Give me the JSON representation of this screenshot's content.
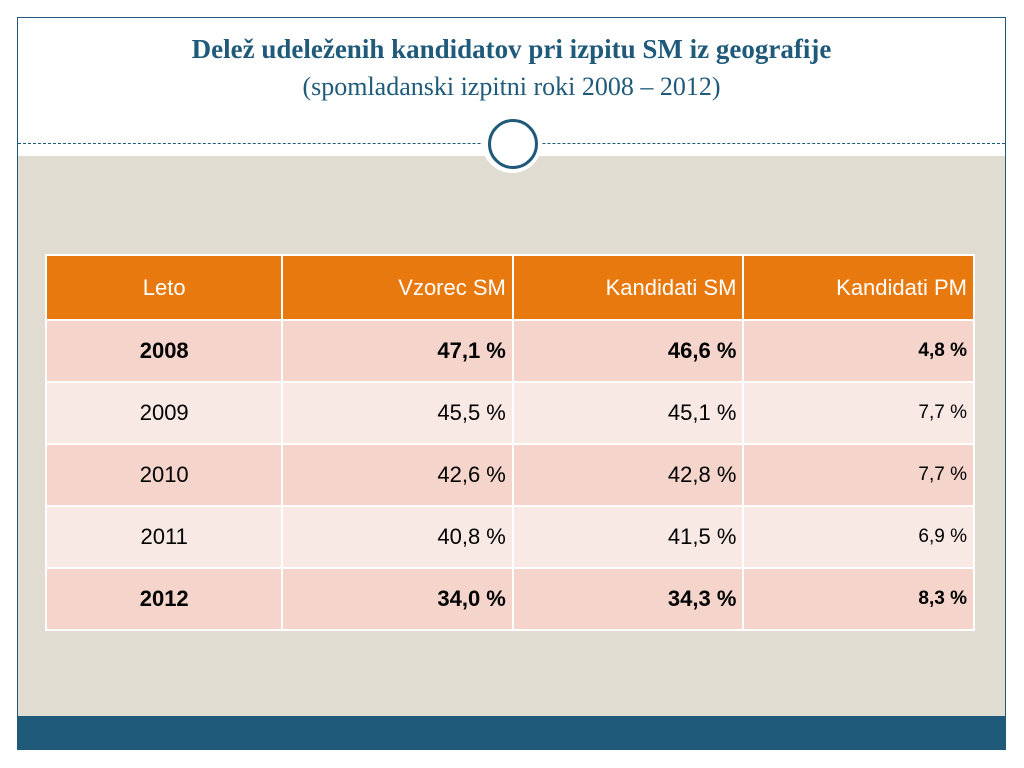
{
  "slide": {
    "title": "Delež udeleženih kandidatov pri izpitu SM iz geografije",
    "subtitle": "(spomladanski izpitni roki 2008 – 2012)"
  },
  "colors": {
    "title": "#1f5a7a",
    "header_bg": "#e8790e",
    "row_dark": "#f4d4cb",
    "row_light": "#f9e9e5",
    "content_bg": "#e0dcd1",
    "footer_bar": "#1f5a7a"
  },
  "table": {
    "headers": [
      "Leto",
      "Vzorec SM",
      "Kandidati SM",
      "Kandidati PM"
    ],
    "rows": [
      {
        "year": "2008",
        "vzorec_sm": "47,1 %",
        "kandidati_sm": "46,6 %",
        "kandidati_pm": "4,8 %",
        "bold": true
      },
      {
        "year": "2009",
        "vzorec_sm": "45,5 %",
        "kandidati_sm": "45,1 %",
        "kandidati_pm": "7,7 %",
        "bold": false
      },
      {
        "year": "2010",
        "vzorec_sm": "42,6 %",
        "kandidati_sm": "42,8 %",
        "kandidati_pm": "7,7 %",
        "bold": false
      },
      {
        "year": "2011",
        "vzorec_sm": "40,8 %",
        "kandidati_sm": "41,5 %",
        "kandidati_pm": "6,9 %",
        "bold": false
      },
      {
        "year": "2012",
        "vzorec_sm": "34,0 %",
        "kandidati_sm": "34,3 %",
        "kandidati_pm": "8,3 %",
        "bold": true
      }
    ]
  }
}
